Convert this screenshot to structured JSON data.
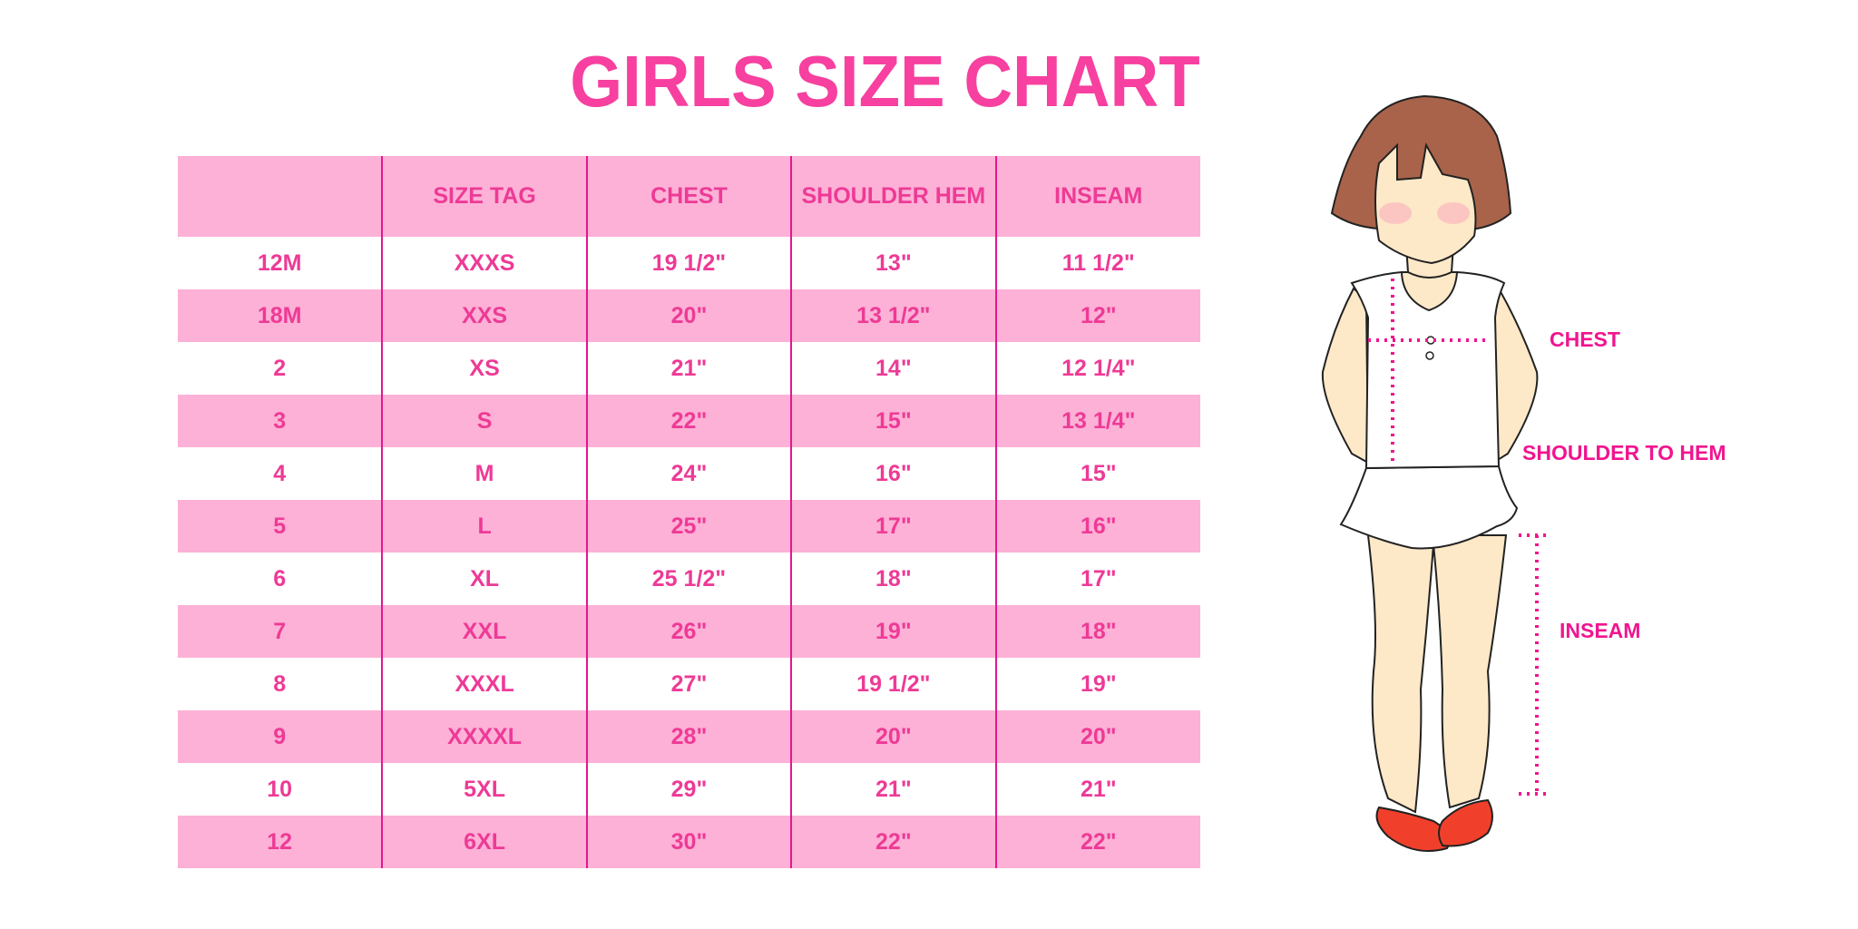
{
  "title": "GIRLS SIZE CHART",
  "table": {
    "headers": [
      "",
      "SIZE TAG",
      "CHEST",
      "SHOULDER HEM",
      "INSEAM"
    ],
    "rows": [
      [
        "12M",
        "XXXS",
        "19 1/2\"",
        "13\"",
        "11 1/2\""
      ],
      [
        "18M",
        "XXS",
        "20\"",
        "13 1/2\"",
        "12\""
      ],
      [
        "2",
        "XS",
        "21\"",
        "14\"",
        "12 1/4\""
      ],
      [
        "3",
        "S",
        "22\"",
        "15\"",
        "13 1/4\""
      ],
      [
        "4",
        "M",
        "24\"",
        "16\"",
        "15\""
      ],
      [
        "5",
        "L",
        "25\"",
        "17\"",
        "16\""
      ],
      [
        "6",
        "XL",
        "25 1/2\"",
        "18\"",
        "17\""
      ],
      [
        "7",
        "XXL",
        "26\"",
        "19\"",
        "18\""
      ],
      [
        "8",
        "XXXL",
        "27\"",
        "19 1/2\"",
        "19\""
      ],
      [
        "9",
        "XXXXL",
        "28\"",
        "20\"",
        "20\""
      ],
      [
        "10",
        "5XL",
        "29\"",
        "21\"",
        "21\""
      ],
      [
        "12",
        "6XL",
        "30\"",
        "22\"",
        "22\""
      ]
    ]
  },
  "figure": {
    "labels": {
      "chest": "CHEST",
      "shoulder_to_hem": "SHOULDER TO HEM",
      "inseam": "INSEAM"
    }
  },
  "colors": {
    "title": "#f7409f",
    "row_pink": "#fdb1d6",
    "divider": "#e3178f",
    "measure": "#f0158f",
    "hair": "#a8634a",
    "skin": "#fde8c8",
    "shoes": "#f0402c"
  }
}
